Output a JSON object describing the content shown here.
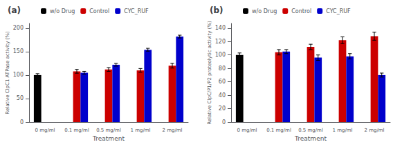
{
  "chart_data": [
    {
      "type": "bar",
      "title": "(a)",
      "xlabel": "Treatment",
      "ylabel": "Relative ClpC1 ATPase activity (%)",
      "categories": [
        "0 mg/ml",
        "0.1 mg/ml",
        "0.5 mg/ml",
        "1 mg/ml",
        "2 mg/ml"
      ],
      "series": [
        {
          "name": "w/o Drug",
          "color": "#000000",
          "values": [
            100,
            null,
            null,
            null,
            null
          ],
          "errors": [
            3,
            null,
            null,
            null,
            null
          ]
        },
        {
          "name": "Control",
          "color": "#cc0000",
          "values": [
            null,
            108,
            112,
            110,
            120
          ],
          "errors": [
            null,
            4,
            4,
            4,
            5
          ]
        },
        {
          "name": "CYC_RUF",
          "color": "#0000cc",
          "values": [
            null,
            105,
            122,
            154,
            182
          ],
          "errors": [
            null,
            3,
            3,
            3,
            3
          ]
        }
      ],
      "ylim": [
        0,
        210
      ],
      "yticks": [
        0,
        50,
        100,
        150,
        200
      ],
      "grid": false,
      "legend": "upper left"
    },
    {
      "type": "bar",
      "title": "(b)",
      "xlabel": "Treatment",
      "ylabel": "Relative ClpC/P1/P2 proteolytic activity (%)",
      "categories": [
        "0 mg/ml",
        "0.1 mg/ml",
        "0.5 mg/ml",
        "1 mg/ml",
        "2 mg/ml"
      ],
      "series": [
        {
          "name": "w/o Drug",
          "color": "#000000",
          "values": [
            100,
            null,
            null,
            null,
            null
          ],
          "errors": [
            3,
            null,
            null,
            null,
            null
          ]
        },
        {
          "name": "Control",
          "color": "#cc0000",
          "values": [
            null,
            104,
            112,
            122,
            128
          ],
          "errors": [
            null,
            4,
            4,
            5,
            6
          ]
        },
        {
          "name": "CYC_RUF",
          "color": "#0000cc",
          "values": [
            null,
            105,
            96,
            98,
            70
          ],
          "errors": [
            null,
            3,
            4,
            4,
            3
          ]
        }
      ],
      "ylim": [
        0,
        147
      ],
      "yticks": [
        0,
        20,
        40,
        60,
        80,
        100,
        120,
        140
      ],
      "grid": false,
      "legend": "upper left"
    }
  ]
}
